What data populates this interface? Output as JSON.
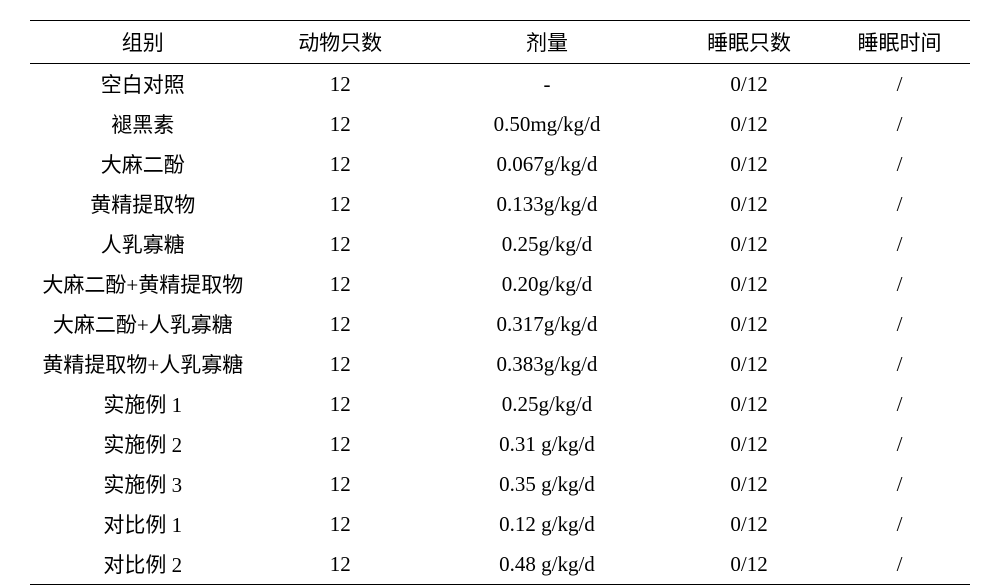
{
  "table": {
    "columns": [
      "组别",
      "动物只数",
      "剂量",
      "睡眠只数",
      "睡眠时间"
    ],
    "col_classes": [
      "col-group",
      "col-count",
      "col-dose",
      "col-sleep-count",
      "col-sleep-time"
    ],
    "rows": [
      [
        "空白对照",
        "12",
        "-",
        "0/12",
        "/"
      ],
      [
        "褪黑素",
        "12",
        "0.50mg/kg/d",
        "0/12",
        "/"
      ],
      [
        "大麻二酚",
        "12",
        "0.067g/kg/d",
        "0/12",
        "/"
      ],
      [
        "黄精提取物",
        "12",
        "0.133g/kg/d",
        "0/12",
        "/"
      ],
      [
        "人乳寡糖",
        "12",
        "0.25g/kg/d",
        "0/12",
        "/"
      ],
      [
        "大麻二酚+黄精提取物",
        "12",
        "0.20g/kg/d",
        "0/12",
        "/"
      ],
      [
        "大麻二酚+人乳寡糖",
        "12",
        "0.317g/kg/d",
        "0/12",
        "/"
      ],
      [
        "黄精提取物+人乳寡糖",
        "12",
        "0.383g/kg/d",
        "0/12",
        "/"
      ],
      [
        "实施例 1",
        "12",
        "0.25g/kg/d",
        "0/12",
        "/"
      ],
      [
        "实施例 2",
        "12",
        "0.31 g/kg/d",
        "0/12",
        "/"
      ],
      [
        "实施例 3",
        "12",
        "0.35 g/kg/d",
        "0/12",
        "/"
      ],
      [
        "对比例 1",
        "12",
        "0.12 g/kg/d",
        "0/12",
        "/"
      ],
      [
        "对比例 2",
        "12",
        "0.48 g/kg/d",
        "0/12",
        "/"
      ]
    ],
    "border_color": "#000000",
    "background_color": "#ffffff",
    "text_color": "#000000",
    "font_size": 21
  }
}
